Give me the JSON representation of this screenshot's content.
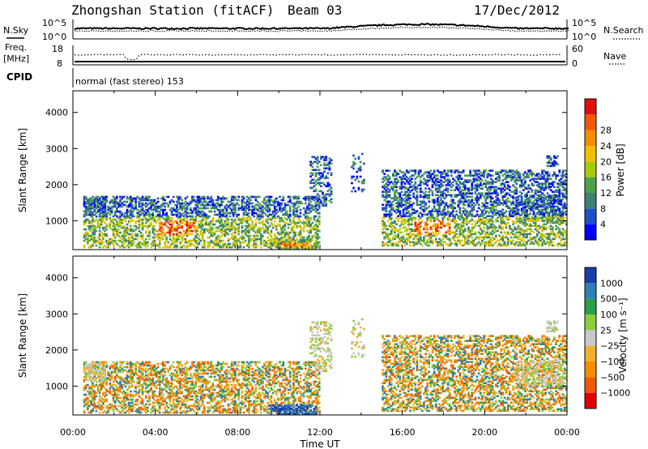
{
  "header": {
    "station": "Zhongshan Station (fitACF)",
    "beam": "Beam 03",
    "date": "17/Dec/2012"
  },
  "top_panel": {
    "label_left": "N.Sky",
    "label_right": "N.Search",
    "tick_top_left": "10^5",
    "tick_bottom_left": "10^0",
    "tick_top_right": "10^5",
    "tick_bottom_right": "10^0"
  },
  "freq_panel": {
    "label_left_1": "Freq.",
    "label_left_2": "[MHz]",
    "label_right": "Nave",
    "tick_top_left": "18",
    "tick_bottom_left": "8",
    "tick_top_right": "60",
    "tick_bottom_right": "0"
  },
  "cpid": {
    "label": "CPID",
    "mode_text": "normal (fast stereo) 153"
  },
  "colors": {
    "power_scale": [
      "#0000ff",
      "#2050c8",
      "#3d7f74",
      "#4fa048",
      "#a8c80a",
      "#f0c000",
      "#f58d00",
      "#ef5a00",
      "#e01010"
    ],
    "velocity_scale": [
      "#e00000",
      "#ef5a00",
      "#f58d00",
      "#f0b030",
      "#c8c8c8",
      "#8ccf3c",
      "#2d9e4a",
      "#2f7fb4",
      "#1a3ea8"
    ]
  },
  "chart_data": [
    {
      "type": "heatmap",
      "name": "power",
      "ylabel": "Slant Range [km]",
      "xlabel": "",
      "x_ticks": [
        "00:00",
        "04:00",
        "08:00",
        "12:00",
        "16:00",
        "20:00",
        "00:00"
      ],
      "y_ticks": [
        "1000",
        "2000",
        "3000",
        "4000"
      ],
      "ylim": [
        200,
        4600
      ],
      "xlim_hours": [
        0,
        24
      ],
      "colorbar_label": "Power [dB]",
      "colorbar_ticks": [
        "4",
        "8",
        "12",
        "16",
        "20",
        "24",
        "28"
      ]
    },
    {
      "type": "heatmap",
      "name": "velocity",
      "ylabel": "Slant Range [km]",
      "xlabel": "Time UT",
      "x_ticks": [
        "00:00",
        "04:00",
        "08:00",
        "12:00",
        "16:00",
        "20:00",
        "00:00"
      ],
      "y_ticks": [
        "1000",
        "2000",
        "3000",
        "4000"
      ],
      "ylim": [
        200,
        4600
      ],
      "xlim_hours": [
        0,
        24
      ],
      "colorbar_label": "Velocity [m s⁻¹]",
      "colorbar_ticks": [
        "1000",
        "500",
        "100",
        "25",
        "−25",
        "−100",
        "−500",
        "−1000"
      ]
    }
  ]
}
